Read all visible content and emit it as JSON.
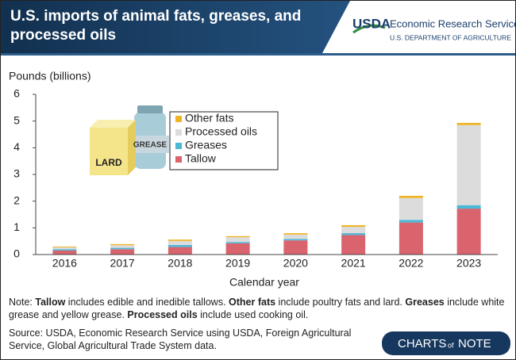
{
  "chart_data": {
    "type": "stacked_bar",
    "title": "U.S. imports of animal fats, greases, and processed oils",
    "agency": "Economic Research Service",
    "department": "U.S. DEPARTMENT OF AGRICULTURE",
    "logo": "USDA",
    "y_axis_label": "Pounds (billions)",
    "x_axis_label": "Calendar year",
    "categories": [
      "2016",
      "2017",
      "2018",
      "2019",
      "2020",
      "2021",
      "2022",
      "2023"
    ],
    "series": [
      {
        "name": "Tallow",
        "color": "#d9646e",
        "values": [
          0.15,
          0.2,
          0.28,
          0.42,
          0.53,
          0.73,
          1.2,
          1.72
        ]
      },
      {
        "name": "Greases",
        "color": "#4bb8d6",
        "values": [
          0.05,
          0.05,
          0.08,
          0.05,
          0.05,
          0.07,
          0.1,
          0.13
        ]
      },
      {
        "name": "Processed oils",
        "color": "#dcdcdc",
        "values": [
          0.07,
          0.1,
          0.15,
          0.18,
          0.17,
          0.24,
          0.82,
          3.0
        ]
      },
      {
        "name": "Other fats",
        "color": "#f0b323",
        "values": [
          0.03,
          0.04,
          0.05,
          0.04,
          0.05,
          0.06,
          0.08,
          0.08
        ]
      }
    ],
    "ylim": [
      0,
      6
    ],
    "yticks": [
      0,
      1,
      2,
      3,
      4,
      5,
      6
    ],
    "illustration_labels": [
      "LARD",
      "GREASE"
    ],
    "note": [
      {
        "text": "Note: ",
        "bold": false
      },
      {
        "text": "Tallow",
        "bold": true
      },
      {
        "text": " includes edible and inedible tallows. ",
        "bold": false
      },
      {
        "text": "Other fats",
        "bold": true
      },
      {
        "text": " include poultry fats and lard. ",
        "bold": false
      },
      {
        "text": "Greases",
        "bold": true
      },
      {
        "text": " include white grease and yellow grease. ",
        "bold": false
      },
      {
        "text": "Processed oils",
        "bold": true
      },
      {
        "text": " include used cooking oil.",
        "bold": false
      }
    ],
    "source": "Source: USDA, Economic Research Service using USDA, Foreign Agricultural Service, Global Agricultural Trade System data.",
    "brand": [
      "CHARTS",
      "of",
      "NOTE"
    ]
  }
}
